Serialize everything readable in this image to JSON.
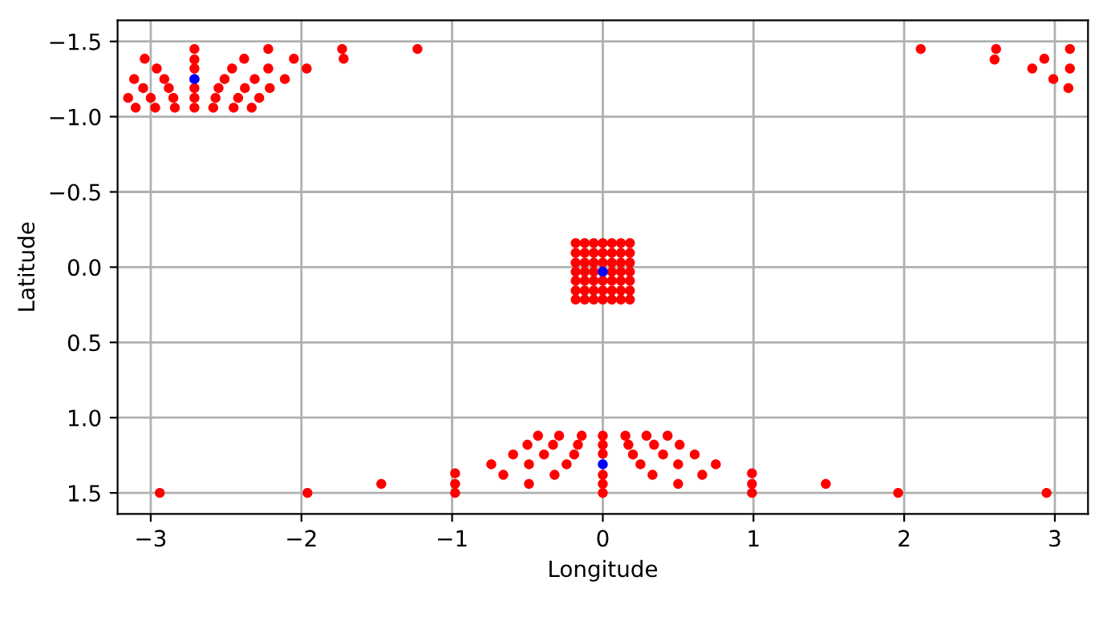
{
  "chart_data": {
    "type": "scatter",
    "xlabel": "Longitude",
    "ylabel": "Latitude",
    "xlim": [
      -3.22,
      3.22
    ],
    "ylim": [
      1.64,
      -1.64
    ],
    "xticks": [
      {
        "value": -3,
        "label": "−3"
      },
      {
        "value": -2,
        "label": "−2"
      },
      {
        "value": -1,
        "label": "−1"
      },
      0,
      1,
      2,
      3
    ],
    "yticks": [
      {
        "value": -1.5,
        "label": "−1.5"
      },
      {
        "value": -1.0,
        "label": "−1.0"
      },
      {
        "value": -0.5,
        "label": "−0.5"
      },
      {
        "value": 0,
        "label": "0.0"
      },
      {
        "value": 0.5,
        "label": "0.5"
      },
      {
        "value": 1.0,
        "label": "1.0"
      },
      {
        "value": 1.5,
        "label": "1.5"
      }
    ],
    "grid": true,
    "marker": "circle",
    "series": [
      {
        "color": "#ff0000",
        "x": [
          -3.04,
          -3.11,
          -3.15,
          -3.1,
          -3.05,
          -3.0,
          -2.97,
          -2.96,
          -2.91,
          -2.88,
          -2.85,
          -2.84,
          -2.71,
          -2.71,
          -2.71,
          -2.71,
          -2.71,
          -2.71,
          -2.71,
          -2.585,
          -2.57,
          -2.55,
          -2.51,
          -2.46,
          -2.38,
          -2.45,
          -2.42,
          -2.375,
          -2.31,
          -2.22,
          -2.22,
          -2.33,
          -2.28,
          -2.21,
          -2.11,
          -2.05,
          -1.965,
          -1.73,
          -1.72,
          -1.23,
          2.11,
          2.61,
          2.6,
          2.85,
          2.93,
          2.99,
          3.1,
          3.1,
          3.09,
          -0.18,
          -0.12,
          -0.06,
          0,
          0.06,
          0.12,
          0.18,
          -0.18,
          -0.12,
          -0.06,
          0,
          0.06,
          0.12,
          0.18,
          -0.18,
          -0.12,
          -0.06,
          0,
          0.06,
          0.12,
          0.18,
          -0.18,
          -0.12,
          -0.06,
          0,
          0.06,
          0.12,
          0.18,
          -0.18,
          -0.12,
          -0.06,
          0,
          0.06,
          0.12,
          0.18,
          -0.18,
          -0.12,
          -0.06,
          0,
          0.06,
          0.12,
          0.18,
          -0.18,
          -0.12,
          -0.06,
          0,
          0.06,
          0.12,
          0.18,
          0,
          0,
          0,
          0,
          0,
          0,
          -0.98,
          -0.98,
          -0.98,
          0.99,
          0.99,
          0.99,
          -0.74,
          -0.66,
          -0.595,
          -0.49,
          -0.49,
          -0.5,
          -0.43,
          -0.39,
          -0.33,
          -0.32,
          -0.29,
          -0.24,
          -0.19,
          -0.165,
          -0.14,
          0.15,
          0.17,
          0.2,
          0.25,
          0.33,
          0.29,
          0.34,
          0.4,
          0.5,
          0.5,
          0.43,
          0.51,
          0.61,
          0.66,
          0.75,
          -2.94,
          -1.96,
          -1.47,
          1.48,
          1.96,
          2.945
        ],
        "values": [
          -1.385,
          -1.25,
          -1.125,
          -1.06,
          -1.19,
          -1.125,
          -1.06,
          -1.32,
          -1.25,
          -1.19,
          -1.125,
          -1.06,
          -1.45,
          -1.38,
          -1.32,
          -1.25,
          -1.19,
          -1.125,
          -1.06,
          -1.06,
          -1.125,
          -1.19,
          -1.25,
          -1.32,
          -1.385,
          -1.06,
          -1.125,
          -1.19,
          -1.25,
          -1.32,
          -1.45,
          -1.06,
          -1.125,
          -1.19,
          -1.25,
          -1.385,
          -1.32,
          -1.45,
          -1.385,
          -1.45,
          -1.45,
          -1.45,
          -1.38,
          -1.32,
          -1.385,
          -1.25,
          -1.45,
          -1.32,
          -1.19,
          -0.16,
          -0.16,
          -0.16,
          -0.16,
          -0.16,
          -0.16,
          -0.16,
          -0.095,
          -0.095,
          -0.095,
          -0.095,
          -0.095,
          -0.095,
          -0.095,
          -0.03,
          -0.03,
          -0.03,
          -0.03,
          -0.03,
          -0.03,
          -0.03,
          0.03,
          0.03,
          0.03,
          0.03,
          0.03,
          0.03,
          0.03,
          0.09,
          0.09,
          0.09,
          0.09,
          0.09,
          0.09,
          0.09,
          0.155,
          0.155,
          0.155,
          0.155,
          0.155,
          0.155,
          0.155,
          0.215,
          0.215,
          0.215,
          0.215,
          0.215,
          0.215,
          0.215,
          1.12,
          1.18,
          1.24,
          1.38,
          1.44,
          1.5,
          1.37,
          1.44,
          1.5,
          1.37,
          1.44,
          1.5,
          1.31,
          1.38,
          1.245,
          1.44,
          1.31,
          1.18,
          1.12,
          1.245,
          1.18,
          1.38,
          1.12,
          1.31,
          1.245,
          1.18,
          1.12,
          1.12,
          1.18,
          1.245,
          1.31,
          1.38,
          1.12,
          1.18,
          1.245,
          1.31,
          1.44,
          1.12,
          1.18,
          1.245,
          1.38,
          1.31,
          1.5,
          1.5,
          1.44,
          1.44,
          1.5,
          1.5
        ]
      },
      {
        "color": "#0000ff",
        "x": [
          -2.71,
          0,
          0
        ],
        "values": [
          -1.25,
          0.03,
          1.31
        ]
      }
    ]
  }
}
